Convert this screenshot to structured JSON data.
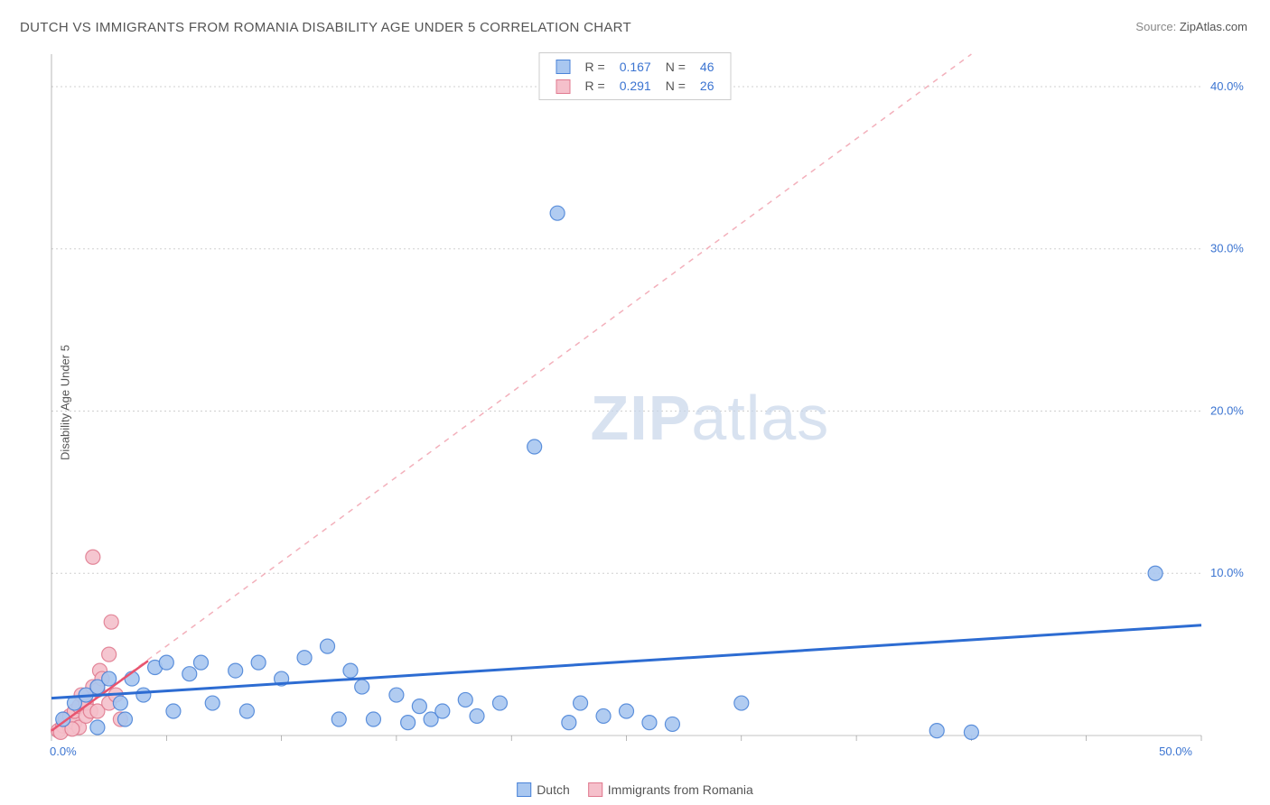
{
  "title": "DUTCH VS IMMIGRANTS FROM ROMANIA DISABILITY AGE UNDER 5 CORRELATION CHART",
  "source_label": "Source:",
  "source_value": "ZipAtlas.com",
  "y_axis_label": "Disability Age Under 5",
  "watermark_bold": "ZIP",
  "watermark_light": "atlas",
  "chart": {
    "type": "scatter",
    "xlim": [
      0,
      50
    ],
    "ylim": [
      0,
      42
    ],
    "x_ticks": [
      0,
      5,
      10,
      15,
      20,
      25,
      30,
      35,
      40,
      45,
      50
    ],
    "y_ticks": [
      10,
      20,
      30,
      40
    ],
    "x_tick_labels": {
      "0": "0.0%",
      "50": "50.0%"
    },
    "y_tick_labels": {
      "10": "10.0%",
      "20": "20.0%",
      "30": "30.0%",
      "40": "40.0%"
    },
    "background_color": "#ffffff",
    "grid_color": "#d0d0d0",
    "dot_radius": 8,
    "series_blue": {
      "fill": "#a9c7f0",
      "stroke": "#4a83d8",
      "points": [
        [
          22.0,
          32.2
        ],
        [
          21.0,
          17.8
        ],
        [
          48.0,
          10.0
        ],
        [
          1.0,
          2.0
        ],
        [
          1.5,
          2.5
        ],
        [
          2.0,
          3.0
        ],
        [
          2.0,
          0.5
        ],
        [
          2.5,
          3.5
        ],
        [
          3.0,
          2.0
        ],
        [
          3.5,
          3.5
        ],
        [
          4.0,
          2.5
        ],
        [
          4.5,
          4.2
        ],
        [
          5.0,
          4.5
        ],
        [
          5.3,
          1.5
        ],
        [
          6.0,
          3.8
        ],
        [
          6.5,
          4.5
        ],
        [
          7.0,
          2.0
        ],
        [
          8.0,
          4.0
        ],
        [
          8.5,
          1.5
        ],
        [
          9.0,
          4.5
        ],
        [
          10.0,
          3.5
        ],
        [
          11.0,
          4.8
        ],
        [
          12.0,
          5.5
        ],
        [
          12.5,
          1.0
        ],
        [
          13.0,
          4.0
        ],
        [
          13.5,
          3.0
        ],
        [
          14.0,
          1.0
        ],
        [
          15.0,
          2.5
        ],
        [
          15.5,
          0.8
        ],
        [
          16.0,
          1.8
        ],
        [
          16.5,
          1.0
        ],
        [
          17.0,
          1.5
        ],
        [
          18.0,
          2.2
        ],
        [
          18.5,
          1.2
        ],
        [
          19.5,
          2.0
        ],
        [
          22.5,
          0.8
        ],
        [
          23.0,
          2.0
        ],
        [
          24.0,
          1.2
        ],
        [
          25.0,
          1.5
        ],
        [
          26.0,
          0.8
        ],
        [
          27.0,
          0.7
        ],
        [
          30.0,
          2.0
        ],
        [
          38.5,
          0.3
        ],
        [
          40.0,
          0.2
        ],
        [
          0.5,
          1.0
        ],
        [
          3.2,
          1.0
        ]
      ],
      "trend": {
        "x1": 0,
        "y1": 2.3,
        "x2": 50,
        "y2": 6.8,
        "color": "#2d6cd2",
        "width": 3
      }
    },
    "series_pink": {
      "fill": "#f5c0cb",
      "stroke": "#e07a8f",
      "points": [
        [
          0.3,
          0.3
        ],
        [
          0.5,
          0.6
        ],
        [
          0.6,
          1.0
        ],
        [
          0.8,
          0.5
        ],
        [
          0.8,
          1.2
        ],
        [
          1.0,
          0.8
        ],
        [
          1.0,
          1.5
        ],
        [
          1.2,
          0.5
        ],
        [
          1.2,
          1.8
        ],
        [
          1.3,
          2.5
        ],
        [
          1.5,
          1.2
        ],
        [
          1.5,
          2.0
        ],
        [
          1.7,
          1.5
        ],
        [
          1.8,
          3.0
        ],
        [
          2.0,
          1.5
        ],
        [
          2.0,
          2.8
        ],
        [
          2.1,
          4.0
        ],
        [
          2.2,
          3.5
        ],
        [
          2.5,
          2.0
        ],
        [
          2.5,
          5.0
        ],
        [
          2.8,
          2.5
        ],
        [
          2.6,
          7.0
        ],
        [
          1.8,
          11.0
        ],
        [
          3.0,
          1.0
        ],
        [
          0.4,
          0.2
        ],
        [
          0.9,
          0.4
        ]
      ],
      "trend_solid": {
        "x1": 0,
        "y1": 0.3,
        "x2": 4.2,
        "y2": 4.6,
        "color": "#e8546f",
        "width": 2.5
      },
      "trend_dash": {
        "x1": 0,
        "y1": 0.3,
        "x2": 40,
        "y2": 42,
        "color": "#f3b0bb",
        "width": 1.5
      }
    }
  },
  "top_legend": {
    "rows": [
      {
        "swatch_fill": "#a9c7f0",
        "swatch_border": "#4a83d8",
        "r_label": "R =",
        "r_val": "0.167",
        "n_label": "N =",
        "n_val": "46"
      },
      {
        "swatch_fill": "#f5c0cb",
        "swatch_border": "#e07a8f",
        "r_label": "R =",
        "r_val": "0.291",
        "n_label": "N =",
        "n_val": "26"
      }
    ]
  },
  "bottom_legend": {
    "items": [
      {
        "swatch_fill": "#a9c7f0",
        "swatch_border": "#4a83d8",
        "label": "Dutch"
      },
      {
        "swatch_fill": "#f5c0cb",
        "swatch_border": "#e07a8f",
        "label": "Immigrants from Romania"
      }
    ]
  }
}
